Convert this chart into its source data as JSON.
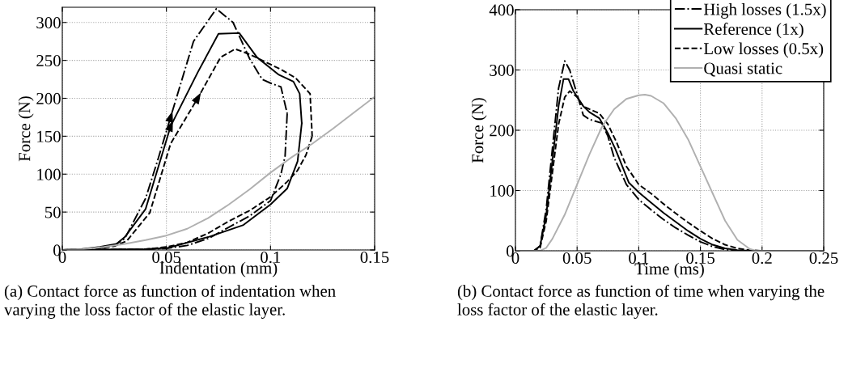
{
  "chart_data": [
    {
      "type": "line",
      "xlabel": "Indentation (mm)",
      "ylabel": "Force (N)",
      "xlim": [
        0,
        0.15
      ],
      "ylim": [
        0,
        320
      ],
      "xticks": [
        0,
        0.05,
        0.1,
        0.15
      ],
      "yticks": [
        0,
        50,
        100,
        150,
        200,
        250,
        300
      ],
      "grid": true,
      "legend": false,
      "marker": "none",
      "annotations": [
        "(a) Contact force as function of indentation when varying the loss factor of the elastic layer."
      ],
      "series": [
        {
          "color": "#000000",
          "line_style": "dashdot",
          "x": [
            0,
            0.015,
            0.025,
            0.03,
            0.04,
            0.046,
            0.052,
            0.063,
            0.074,
            0.082,
            0.09,
            0.096,
            0.1,
            0.105,
            0.108
          ],
          "values": [
            0,
            1,
            6,
            15,
            68,
            120,
            175,
            275,
            318,
            300,
            252,
            225,
            220,
            215,
            180
          ]
        },
        {
          "color": "#000000",
          "line_style": "solid",
          "x": [
            0,
            0.009,
            0.018,
            0.026,
            0.03,
            0.04,
            0.052,
            0.065,
            0.075,
            0.085,
            0.0935,
            0.104,
            0.111,
            0.114,
            0.115
          ],
          "values": [
            0,
            1,
            4,
            8,
            17,
            54,
            163,
            234,
            285,
            286,
            254,
            231,
            222,
            206,
            167
          ]
        },
        {
          "color": "#000000",
          "line_style": "dashed",
          "x": [
            0,
            0.015,
            0.025,
            0.031,
            0.042,
            0.052,
            0.065,
            0.076,
            0.083,
            0.09,
            0.096,
            0.105,
            0.112,
            0.119,
            0.12
          ],
          "values": [
            0,
            1,
            5,
            12,
            49,
            140,
            200,
            254,
            265,
            258,
            250,
            238,
            227,
            206,
            150
          ]
        },
        {
          "color": "#000000",
          "line_style": "dashdot",
          "x": [
            0.108,
            0.107,
            0.105,
            0.1,
            0.09,
            0.08,
            0.07,
            0.06,
            0.05,
            0.04,
            0
          ],
          "values": [
            180,
            124,
            100,
            65,
            45,
            30,
            15,
            6,
            2,
            1,
            0
          ]
        },
        {
          "color": "#000000",
          "line_style": "solid",
          "x": [
            0.115,
            0.113,
            0.108,
            0.1,
            0.087,
            0.07,
            0.051,
            0.04,
            0
          ],
          "values": [
            167,
            117,
            81,
            60,
            33,
            17,
            3,
            1,
            0
          ]
        },
        {
          "color": "#000000",
          "line_style": "dashed",
          "x": [
            0.12,
            0.117,
            0.113,
            0.108,
            0.1,
            0.09,
            0.08,
            0.07,
            0.06,
            0.05,
            0.04,
            0
          ],
          "values": [
            150,
            125,
            105,
            90,
            70,
            52,
            38,
            22,
            10,
            4,
            1,
            0
          ]
        },
        {
          "color": "#b0b0b0",
          "line_style": "solid",
          "x": [
            0,
            0.01,
            0.02,
            0.03,
            0.04,
            0.05,
            0.06,
            0.07,
            0.08,
            0.09,
            0.1,
            0.11,
            0.12,
            0.13,
            0.14,
            0.15
          ],
          "values": [
            0,
            1,
            4,
            8,
            13,
            19,
            28,
            42,
            60,
            80,
            102,
            122,
            140,
            160,
            181,
            202
          ]
        }
      ]
    },
    {
      "type": "line",
      "xlabel": "Time (ms)",
      "ylabel": "Force (N)",
      "xlim": [
        0,
        0.25
      ],
      "ylim": [
        0,
        400
      ],
      "xticks": [
        0,
        0.05,
        0.1,
        0.15,
        0.2,
        0.25
      ],
      "yticks": [
        0,
        100,
        200,
        300,
        400
      ],
      "grid": true,
      "legend": "top right",
      "marker": "none",
      "annotations": [
        "(b) Contact force as function of time when varying the loss factor of the elastic layer."
      ],
      "series": [
        {
          "name": "High losses (1.5x)",
          "color": "#000000",
          "line_style": "dashdot",
          "x": [
            0,
            0.015,
            0.02,
            0.025,
            0.03,
            0.035,
            0.04,
            0.044,
            0.05,
            0.055,
            0.06,
            0.07,
            0.075,
            0.08,
            0.09,
            0.1,
            0.11,
            0.12,
            0.13,
            0.14,
            0.15,
            0.16,
            0.17,
            0.18,
            0.25
          ],
          "values": [
            0,
            0,
            8,
            70,
            170,
            270,
            315,
            300,
            260,
            225,
            218,
            212,
            190,
            155,
            110,
            85,
            68,
            52,
            38,
            26,
            15,
            7,
            2,
            0,
            0
          ]
        },
        {
          "name": "Reference (1x)",
          "color": "#000000",
          "line_style": "solid",
          "x": [
            0,
            0.015,
            0.02,
            0.025,
            0.03,
            0.035,
            0.039,
            0.043,
            0.047,
            0.055,
            0.06,
            0.068,
            0.075,
            0.081,
            0.092,
            0.1,
            0.11,
            0.12,
            0.13,
            0.14,
            0.15,
            0.16,
            0.17,
            0.18,
            0.19,
            0.25
          ],
          "values": [
            0,
            0,
            8,
            60,
            150,
            240,
            285,
            285,
            265,
            240,
            230,
            220,
            195,
            169,
            113,
            97,
            80,
            63,
            48,
            33,
            20,
            10,
            4,
            1,
            0,
            0
          ]
        },
        {
          "name": "Low losses (0.5x)",
          "color": "#000000",
          "line_style": "dashed",
          "x": [
            0,
            0.015,
            0.02,
            0.025,
            0.03,
            0.035,
            0.04,
            0.044,
            0.05,
            0.055,
            0.06,
            0.068,
            0.075,
            0.082,
            0.09,
            0.1,
            0.11,
            0.12,
            0.13,
            0.14,
            0.15,
            0.16,
            0.17,
            0.18,
            0.19,
            0.2,
            0.25
          ],
          "values": [
            0,
            0,
            5,
            50,
            130,
            210,
            255,
            265,
            255,
            240,
            235,
            228,
            210,
            180,
            140,
            110,
            95,
            78,
            62,
            47,
            33,
            20,
            10,
            4,
            1,
            0,
            0
          ]
        },
        {
          "name": "Quasi static",
          "color": "#b0b0b0",
          "line_style": "solid",
          "x": [
            0,
            0.02,
            0.025,
            0.03,
            0.04,
            0.05,
            0.06,
            0.07,
            0.08,
            0.09,
            0.1,
            0.105,
            0.11,
            0.12,
            0.13,
            0.14,
            0.15,
            0.16,
            0.17,
            0.18,
            0.19,
            0.195,
            0.25
          ],
          "values": [
            0,
            0,
            5,
            20,
            60,
            110,
            160,
            205,
            235,
            252,
            258,
            259,
            257,
            245,
            220,
            185,
            140,
            95,
            50,
            18,
            3,
            0,
            0
          ]
        }
      ]
    }
  ]
}
